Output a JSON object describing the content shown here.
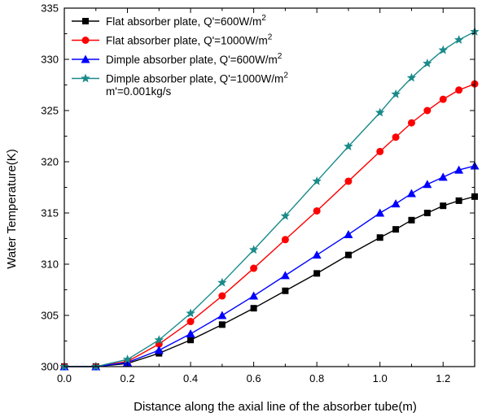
{
  "chart_data": {
    "type": "line",
    "xlabel": "Distance along the axial line of the absorber tube(m)",
    "ylabel": "Water Temperature(K)",
    "xlim": [
      0.0,
      1.3
    ],
    "ylim": [
      300,
      335
    ],
    "x_ticks": [
      "0.0",
      "0.2",
      "0.4",
      "0.6",
      "0.8",
      "1.0",
      "1.2"
    ],
    "y_ticks": [
      "300",
      "305",
      "310",
      "315",
      "320",
      "325",
      "330",
      "335"
    ],
    "grid": false,
    "legend_position": "top-left",
    "legend_note": "m'=0.001kg/s",
    "x": [
      0.0,
      0.1,
      0.2,
      0.3,
      0.4,
      0.5,
      0.6,
      0.7,
      0.8,
      0.9,
      1.0,
      1.05,
      1.1,
      1.15,
      1.2,
      1.25,
      1.3
    ],
    "series": [
      {
        "name": "Flat absorber plate, Q'=600W/m",
        "name_sup": "2",
        "color": "#000000",
        "marker": "square",
        "values": [
          300.0,
          300.0,
          300.3,
          301.3,
          302.6,
          304.1,
          305.7,
          307.4,
          309.1,
          310.9,
          312.6,
          313.4,
          314.3,
          315.0,
          315.7,
          316.2,
          316.6
        ]
      },
      {
        "name": "Flat absorber plate, Q'=1000W/m",
        "name_sup": "2",
        "color": "#ff0000",
        "marker": "circle",
        "values": [
          300.0,
          300.0,
          300.5,
          302.2,
          304.4,
          306.9,
          309.6,
          312.4,
          315.2,
          318.1,
          321.0,
          322.4,
          323.8,
          325.0,
          326.1,
          327.0,
          327.6
        ]
      },
      {
        "name": "Dimple absorber plate, Q'=600W/m",
        "name_sup": "2",
        "color": "#0000ff",
        "marker": "triangle",
        "values": [
          300.0,
          300.0,
          300.4,
          301.6,
          303.2,
          305.0,
          306.9,
          308.9,
          310.9,
          312.9,
          315.0,
          315.9,
          316.9,
          317.8,
          318.5,
          319.2,
          319.6
        ]
      },
      {
        "name": "Dimple absorber plate, Q'=1000W/m",
        "name_sup": "2",
        "color": "#1a8a8a",
        "marker": "star",
        "values": [
          300.0,
          300.0,
          300.7,
          302.6,
          305.2,
          308.2,
          311.4,
          314.7,
          318.1,
          321.5,
          324.8,
          326.6,
          328.2,
          329.6,
          330.9,
          331.9,
          332.7
        ]
      }
    ]
  }
}
